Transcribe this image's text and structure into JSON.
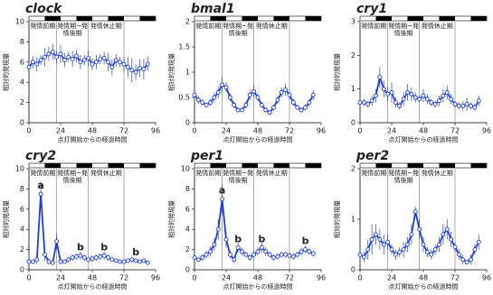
{
  "chart_data": [
    {
      "type": "line",
      "title": "clock",
      "ylabel": "相対的発現量",
      "xlabel": "点灯開始からの経過時間",
      "color": "#1f3fdc",
      "x": [
        0,
        3,
        6,
        9,
        12,
        15,
        18,
        21,
        24,
        27,
        30,
        33,
        36,
        39,
        42,
        45,
        48,
        51,
        54,
        57,
        60,
        63,
        66,
        69,
        72,
        75,
        78,
        81,
        84,
        87,
        90
      ],
      "values": [
        5.5,
        6,
        5.8,
        6.2,
        6.5,
        6.8,
        7,
        6.5,
        6.8,
        6.2,
        6.5,
        6.3,
        6.6,
        6,
        6.2,
        6.4,
        5.8,
        6,
        6.3,
        6.4,
        6,
        5.5,
        6.2,
        6,
        5.8,
        5.5,
        5.2,
        5,
        5.4,
        5.3,
        5.8
      ],
      "errors": [
        0.8,
        0.6,
        0.7,
        0.5,
        0.9,
        0.7,
        0.8,
        0.6,
        0.9,
        0.7,
        0.5,
        0.8,
        0.6,
        0.7,
        0.5,
        0.8,
        0.6,
        0.7,
        0.5,
        0.6,
        0.9,
        0.8,
        0.6,
        0.5,
        0.7,
        1.0,
        1.2,
        0.8,
        0.9,
        1.0,
        0.7
      ],
      "xlim": [
        0,
        96
      ],
      "xticks": [
        0,
        24,
        48,
        72,
        96
      ],
      "ylim": [
        0,
        10
      ],
      "yticks": [
        0,
        2,
        4,
        6,
        8,
        10
      ],
      "dark": [
        [
          12,
          24
        ],
        [
          36,
          48
        ],
        [
          60,
          72
        ],
        [
          84,
          96
        ]
      ],
      "regions": [
        {
          "label": "発情前期",
          "x0": 0,
          "x1": 21
        },
        {
          "label": "発情期~発情後期",
          "x0": 21,
          "x1": 45
        },
        {
          "label": "発情休止期",
          "x0": 45,
          "x1": 72
        }
      ]
    },
    {
      "type": "line",
      "title": "bmal1",
      "ylabel": "相対的発現量",
      "xlabel": "点灯開始からの経過時間",
      "color": "#1f3fdc",
      "x": [
        0,
        3,
        6,
        9,
        12,
        15,
        18,
        21,
        24,
        27,
        30,
        33,
        36,
        39,
        42,
        45,
        48,
        51,
        54,
        57,
        60,
        63,
        66,
        69,
        72,
        75,
        78,
        81,
        84,
        87,
        90
      ],
      "values": [
        0.55,
        0.45,
        0.4,
        0.35,
        0.4,
        0.5,
        0.6,
        0.75,
        0.7,
        0.5,
        0.35,
        0.25,
        0.25,
        0.35,
        0.55,
        0.62,
        0.5,
        0.35,
        0.25,
        0.2,
        0.3,
        0.45,
        0.6,
        0.65,
        0.55,
        0.4,
        0.3,
        0.25,
        0.3,
        0.4,
        0.55
      ],
      "errors": [
        0.1,
        0.08,
        0.06,
        0.05,
        0.07,
        0.1,
        0.12,
        0.15,
        0.1,
        0.08,
        0.06,
        0.05,
        0.05,
        0.07,
        0.1,
        0.12,
        0.08,
        0.06,
        0.05,
        0.05,
        0.06,
        0.08,
        0.1,
        0.12,
        0.1,
        0.07,
        0.05,
        0.05,
        0.06,
        0.08,
        0.1
      ],
      "xlim": [
        0,
        96
      ],
      "xticks": [
        0,
        24,
        48,
        72,
        96
      ],
      "ylim": [
        0,
        2
      ],
      "yticks": [
        0,
        0.5,
        1,
        1.5,
        2
      ],
      "dark": [
        [
          12,
          24
        ],
        [
          36,
          48
        ],
        [
          60,
          72
        ],
        [
          84,
          96
        ]
      ],
      "regions": [
        {
          "label": "発情前期",
          "x0": 0,
          "x1": 21
        },
        {
          "label": "発情期~発情後期",
          "x0": 21,
          "x1": 45
        },
        {
          "label": "発情休止期",
          "x0": 45,
          "x1": 72
        }
      ]
    },
    {
      "type": "line",
      "title": "cry1",
      "ylabel": "相対的発現量",
      "xlabel": "点灯開始からの経過時間",
      "color": "#1f3fdc",
      "x": [
        0,
        3,
        6,
        9,
        12,
        15,
        18,
        21,
        24,
        27,
        30,
        33,
        36,
        39,
        42,
        45,
        48,
        51,
        54,
        57,
        60,
        63,
        66,
        69,
        72,
        75,
        78,
        81,
        84,
        87,
        90
      ],
      "values": [
        0.6,
        0.6,
        0.55,
        0.65,
        0.8,
        1.35,
        1.0,
        0.85,
        0.9,
        0.6,
        0.5,
        0.7,
        0.9,
        0.85,
        0.75,
        0.7,
        0.8,
        0.7,
        0.6,
        0.55,
        0.65,
        0.8,
        0.9,
        0.7,
        0.55,
        0.5,
        0.5,
        0.55,
        0.5,
        0.45,
        0.65
      ],
      "errors": [
        0.1,
        0.1,
        0.1,
        0.15,
        0.2,
        0.3,
        0.25,
        0.2,
        0.3,
        0.15,
        0.1,
        0.2,
        0.25,
        0.2,
        0.15,
        0.1,
        0.2,
        0.15,
        0.1,
        0.1,
        0.15,
        0.2,
        0.2,
        0.15,
        0.1,
        0.1,
        0.15,
        0.2,
        0.1,
        0.1,
        0.15
      ],
      "xlim": [
        0,
        96
      ],
      "xticks": [
        0,
        24,
        48,
        72,
        96
      ],
      "ylim": [
        0,
        3
      ],
      "yticks": [
        0,
        1,
        2,
        3
      ],
      "dark": [
        [
          12,
          24
        ],
        [
          36,
          48
        ],
        [
          60,
          72
        ],
        [
          84,
          96
        ]
      ],
      "regions": [
        {
          "label": "発情前期",
          "x0": 0,
          "x1": 21
        },
        {
          "label": "発情期~発情後期",
          "x0": 21,
          "x1": 45
        },
        {
          "label": "発情休止期",
          "x0": 45,
          "x1": 72
        }
      ]
    },
    {
      "type": "line",
      "title": "cry2",
      "ylabel": "相対的発現量",
      "xlabel": "点灯開始からの経過時間",
      "color": "#1f3fdc",
      "x": [
        0,
        3,
        6,
        9,
        12,
        15,
        18,
        21,
        24,
        27,
        30,
        33,
        36,
        39,
        42,
        45,
        48,
        51,
        54,
        57,
        60,
        63,
        66,
        69,
        72,
        75,
        78,
        81,
        84,
        87,
        90
      ],
      "values": [
        0.8,
        0.8,
        1.0,
        7.5,
        1.5,
        0.8,
        0.7,
        2.8,
        0.8,
        0.8,
        1.0,
        1.2,
        1.3,
        1.4,
        1.2,
        1.0,
        1.1,
        1.2,
        1.3,
        1.4,
        1.2,
        1.0,
        0.9,
        0.8,
        0.8,
        0.9,
        1.0,
        0.9,
        0.8,
        0.9,
        0.7
      ],
      "errors": [
        0.3,
        0.2,
        0.4,
        1.2,
        0.6,
        0.3,
        0.2,
        0.8,
        0.3,
        0.2,
        0.3,
        0.3,
        0.3,
        0.4,
        0.3,
        0.2,
        0.3,
        0.3,
        0.3,
        0.4,
        0.3,
        0.2,
        0.2,
        0.2,
        0.2,
        0.2,
        0.3,
        0.2,
        0.2,
        0.2,
        0.2
      ],
      "xlim": [
        0,
        96
      ],
      "xticks": [
        0,
        24,
        48,
        72,
        96
      ],
      "ylim": [
        0,
        10
      ],
      "yticks": [
        0,
        2,
        4,
        6,
        8,
        10
      ],
      "dark": [
        [
          12,
          24
        ],
        [
          36,
          48
        ],
        [
          60,
          72
        ],
        [
          84,
          96
        ]
      ],
      "regions": [
        {
          "label": "発情前期",
          "x0": 0,
          "x1": 21
        },
        {
          "label": "発情期~発情後期",
          "x0": 21,
          "x1": 45
        },
        {
          "label": "発情休止期",
          "x0": 45,
          "x1": 72
        }
      ],
      "annotations": [
        {
          "text": "a",
          "x": 9,
          "y": 7.5
        },
        {
          "text": "b",
          "x": 39,
          "y": 1.4
        },
        {
          "text": "b",
          "x": 57,
          "y": 1.4
        },
        {
          "text": "b",
          "x": 81,
          "y": 0.9
        }
      ]
    },
    {
      "type": "line",
      "title": "per1",
      "ylabel": "相対的発現量",
      "xlabel": "点灯開始からの経過時間",
      "color": "#1f3fdc",
      "x": [
        0,
        3,
        6,
        9,
        12,
        15,
        18,
        21,
        24,
        27,
        30,
        33,
        36,
        39,
        42,
        45,
        48,
        51,
        54,
        57,
        60,
        63,
        66,
        69,
        72,
        75,
        78,
        81,
        84,
        87,
        90
      ],
      "values": [
        1.2,
        1.0,
        1.2,
        1.5,
        1.8,
        2.5,
        4.0,
        7.0,
        3.0,
        1.5,
        1.0,
        2.2,
        1.8,
        1.5,
        1.2,
        1.5,
        1.8,
        2.2,
        1.8,
        1.5,
        1.2,
        1.3,
        1.5,
        1.5,
        1.4,
        1.3,
        1.5,
        1.8,
        2.0,
        1.8,
        1.6
      ],
      "errors": [
        0.3,
        0.2,
        0.3,
        0.4,
        0.5,
        0.6,
        1.0,
        1.5,
        0.8,
        0.4,
        0.3,
        0.5,
        0.4,
        0.3,
        0.3,
        0.4,
        0.4,
        0.5,
        0.4,
        0.3,
        0.3,
        0.3,
        0.3,
        0.3,
        0.3,
        0.3,
        0.3,
        0.4,
        0.4,
        0.3,
        0.3
      ],
      "xlim": [
        0,
        96
      ],
      "xticks": [
        0,
        24,
        48,
        72,
        96
      ],
      "ylim": [
        0,
        10
      ],
      "yticks": [
        0,
        2,
        4,
        6,
        8,
        10
      ],
      "dark": [
        [
          12,
          24
        ],
        [
          36,
          48
        ],
        [
          60,
          72
        ],
        [
          84,
          96
        ]
      ],
      "regions": [
        {
          "label": "発情前期",
          "x0": 0,
          "x1": 21
        },
        {
          "label": "発情期~発情後期",
          "x0": 21,
          "x1": 45
        },
        {
          "label": "発情休止期",
          "x0": 45,
          "x1": 72
        }
      ],
      "annotations": [
        {
          "text": "a",
          "x": 21,
          "y": 7.0
        },
        {
          "text": "b",
          "x": 33,
          "y": 2.2
        },
        {
          "text": "b",
          "x": 51,
          "y": 2.2
        },
        {
          "text": "b",
          "x": 84,
          "y": 2.0
        }
      ]
    },
    {
      "type": "line",
      "title": "per2",
      "ylabel": "相対的発現量",
      "xlabel": "点灯開始からの経過時間",
      "color": "#1f3fdc",
      "x": [
        0,
        3,
        6,
        9,
        12,
        15,
        18,
        21,
        24,
        27,
        30,
        33,
        36,
        39,
        42,
        45,
        48,
        51,
        54,
        57,
        60,
        63,
        66,
        69,
        72,
        75,
        78,
        81,
        84,
        87,
        90
      ],
      "values": [
        0.3,
        0.25,
        0.4,
        0.6,
        0.7,
        0.6,
        0.5,
        0.55,
        0.4,
        0.3,
        0.35,
        0.4,
        0.5,
        0.7,
        1.15,
        0.8,
        0.5,
        0.35,
        0.3,
        0.4,
        0.5,
        0.7,
        0.8,
        0.6,
        0.45,
        0.3,
        0.2,
        0.15,
        0.2,
        0.4,
        0.55
      ],
      "errors": [
        0.1,
        0.1,
        0.2,
        0.3,
        0.2,
        0.2,
        0.2,
        0.15,
        0.1,
        0.1,
        0.1,
        0.15,
        0.15,
        0.2,
        0.1,
        0.2,
        0.15,
        0.1,
        0.1,
        0.1,
        0.15,
        0.2,
        0.2,
        0.15,
        0.1,
        0.1,
        0.1,
        0.05,
        0.1,
        0.1,
        0.15
      ],
      "xlim": [
        0,
        96
      ],
      "xticks": [
        0,
        24,
        48,
        72,
        96
      ],
      "ylim": [
        0,
        2
      ],
      "yticks": [
        0,
        1,
        2
      ],
      "dark": [
        [
          12,
          24
        ],
        [
          36,
          48
        ],
        [
          60,
          72
        ],
        [
          84,
          96
        ]
      ],
      "regions": [
        {
          "label": "発情前期",
          "x0": 0,
          "x1": 21
        },
        {
          "label": "発情期~発情後期",
          "x0": 21,
          "x1": 45
        },
        {
          "label": "発情休止期",
          "x0": 45,
          "x1": 72
        }
      ]
    }
  ]
}
